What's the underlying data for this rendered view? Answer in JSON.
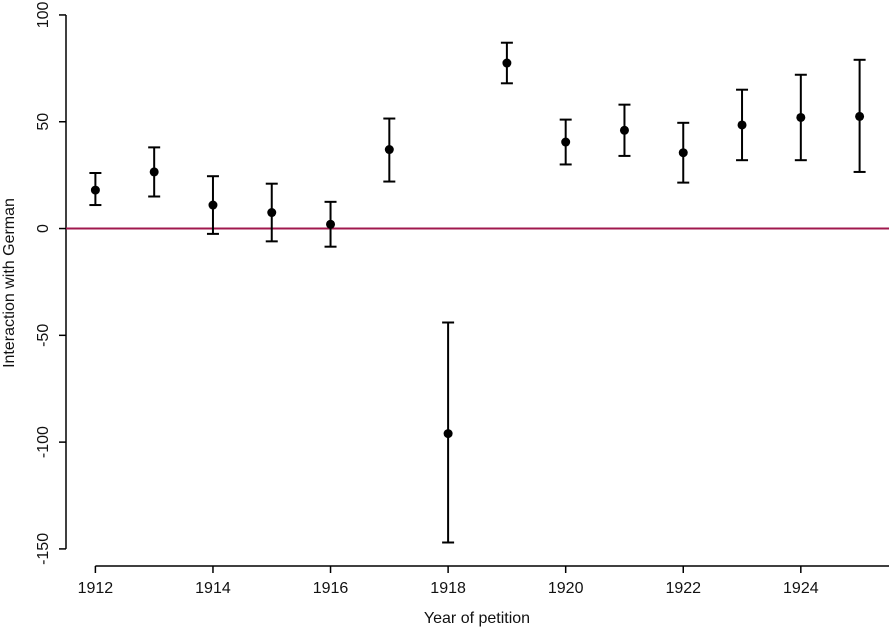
{
  "chart_data": {
    "type": "errorbar",
    "x_label": "Year of petition",
    "y_label": "Interaction with German",
    "x": [
      1912,
      1913,
      1914,
      1915,
      1916,
      1917,
      1918,
      1919,
      1920,
      1921,
      1922,
      1923,
      1924,
      1925
    ],
    "values": [
      18,
      26.5,
      11,
      7.5,
      2,
      37,
      -96,
      77.5,
      40.5,
      46,
      35.5,
      48.5,
      52,
      52.5
    ],
    "lower": [
      11,
      15,
      -2.5,
      -6,
      -8.5,
      22,
      -147,
      68,
      30,
      34,
      21.5,
      32,
      32,
      26.5
    ],
    "upper": [
      26,
      38,
      24.5,
      21,
      12.5,
      51.5,
      -44,
      87,
      51,
      58,
      49.5,
      65,
      72,
      79
    ],
    "color": "#000000",
    "reference_line": {
      "value": 0,
      "color": "#a0184e"
    },
    "xlim": [
      1911.5,
      1925.5
    ],
    "xticks": [
      1912,
      1914,
      1916,
      1918,
      1920,
      1922,
      1924
    ],
    "ylim": [
      -158,
      107
    ],
    "yticks": [
      -150,
      -100,
      -50,
      0,
      50,
      100
    ]
  }
}
